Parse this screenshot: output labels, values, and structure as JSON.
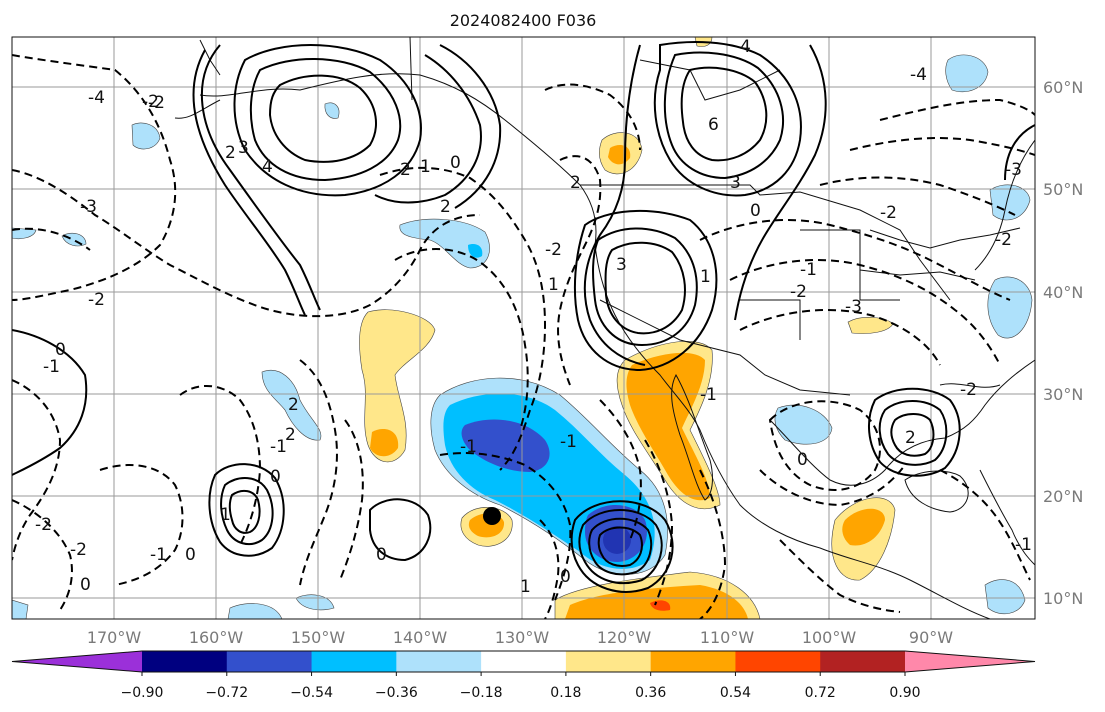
{
  "title": "2024082400 F036",
  "map": {
    "lon_labels": [
      "170°W",
      "160°W",
      "150°W",
      "140°W",
      "130°W",
      "120°W",
      "110°W",
      "100°W",
      "90°W"
    ],
    "lat_labels": [
      "60°N",
      "50°N",
      "40°N",
      "30°N",
      "20°N",
      "10°N"
    ],
    "grid": true,
    "contour_labels": [
      "-2",
      "-4",
      "-3",
      "-2",
      "-1",
      "0",
      "-1",
      "-2",
      "0",
      "-2",
      "2",
      "4",
      "3",
      "2",
      "1",
      "2",
      "1",
      "0",
      "2",
      "-2",
      "-2",
      "-1",
      "1",
      "3",
      "6",
      "3",
      "4",
      "-4",
      "-2",
      "-1",
      "0",
      "1",
      "2",
      "0",
      "-1",
      "-3",
      "-2",
      "-2",
      "-3",
      "-2",
      "0",
      "-1",
      "0",
      "1",
      "2",
      "0",
      "-1",
      "0",
      "-1",
      "2",
      "3",
      "-1",
      "-2",
      "-1"
    ]
  },
  "colorbar": {
    "colors": [
      "#9b30d9",
      "#000080",
      "#3350cc",
      "#00bfff",
      "#aee1fb",
      "#ffffff",
      "#ffe78a",
      "#ffa500",
      "#ff4500",
      "#b22222",
      "#ff88aa"
    ],
    "tick_labels": [
      "−0.90",
      "−0.72",
      "−0.54",
      "−0.36",
      "−0.18",
      "0.18",
      "0.36",
      "0.54",
      "0.72",
      "0.90"
    ]
  }
}
